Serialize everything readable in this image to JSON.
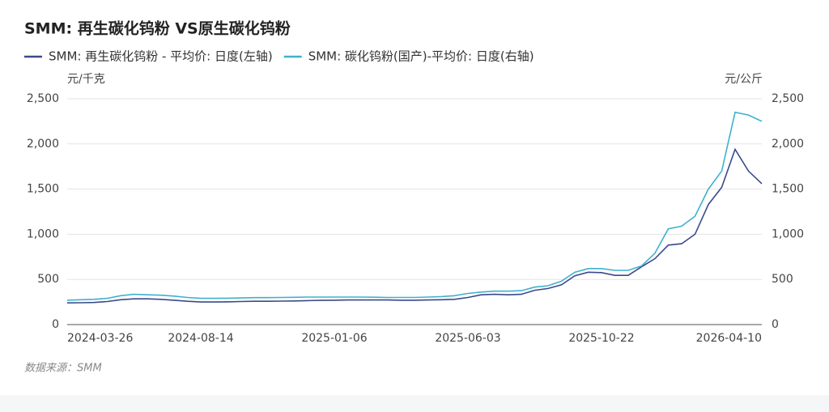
{
  "chart_data": {
    "type": "line",
    "title": "SMM: 再生碳化钨粉 VS原生碳化钨粉",
    "y_unit": "元/千克",
    "y2_unit": "元/公斤",
    "source": "数据来源：SMM",
    "categories": [
      "2024-03-26",
      null,
      null,
      null,
      null,
      null,
      null,
      null,
      null,
      null,
      "2024-08-14",
      null,
      null,
      null,
      null,
      null,
      null,
      null,
      null,
      null,
      "2025-01-06",
      null,
      null,
      null,
      null,
      null,
      null,
      null,
      null,
      null,
      "2025-06-03",
      null,
      null,
      null,
      null,
      null,
      null,
      null,
      null,
      null,
      "2025-10-22",
      null,
      null,
      null,
      null,
      null,
      null,
      null,
      null,
      null,
      "2026-04-10",
      null,
      null
    ],
    "series": [
      {
        "name": "SMM: 再生碳化钨粉 - 平均价: 日度(左轴)",
        "color": "#3a4a8a",
        "axis": "y",
        "values": [
          240,
          242,
          245,
          255,
          275,
          285,
          285,
          280,
          270,
          258,
          250,
          250,
          252,
          255,
          258,
          258,
          260,
          262,
          265,
          268,
          270,
          272,
          272,
          272,
          272,
          270,
          270,
          272,
          275,
          280,
          300,
          330,
          335,
          330,
          335,
          380,
          400,
          440,
          540,
          580,
          575,
          545,
          545,
          640,
          730,
          880,
          895,
          1000,
          1330,
          1520,
          1940,
          1700,
          1560
        ]
      },
      {
        "name": "SMM: 碳化钨粉(国产)-平均价: 日度(右轴)",
        "color": "#3fb1ce",
        "axis": "y2",
        "values": [
          270,
          275,
          280,
          290,
          320,
          335,
          330,
          325,
          315,
          300,
          290,
          290,
          292,
          295,
          298,
          298,
          300,
          302,
          305,
          305,
          305,
          305,
          305,
          303,
          300,
          300,
          300,
          305,
          310,
          320,
          345,
          360,
          370,
          370,
          375,
          415,
          430,
          480,
          580,
          620,
          620,
          600,
          600,
          650,
          790,
          1060,
          1090,
          1200,
          1500,
          1700,
          2350,
          2320,
          2250
        ]
      }
    ],
    "ylim": [
      0,
      2500
    ],
    "yticks": [
      0,
      500,
      {
        "value": 1000,
        "label": "1,000"
      },
      {
        "value": 1500,
        "label": "1,500"
      },
      {
        "value": 2000,
        "label": "2,000"
      },
      {
        "value": 2500,
        "label": "2,500"
      }
    ],
    "y2lim": [
      0,
      2500
    ],
    "y2ticks": [
      0,
      500,
      {
        "value": 1000,
        "label": "1,000"
      },
      {
        "value": 1500,
        "label": "1,500"
      },
      {
        "value": 2000,
        "label": "2,000"
      },
      {
        "value": 2500,
        "label": "2,500"
      }
    ],
    "grid": true
  }
}
